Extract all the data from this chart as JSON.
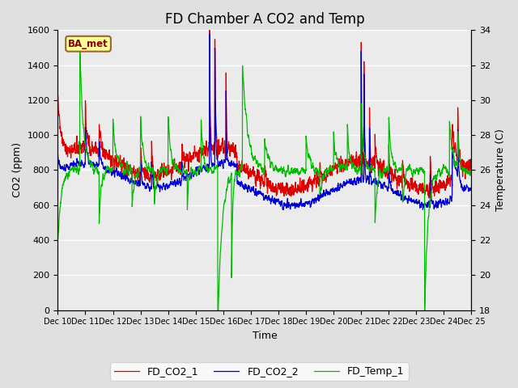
{
  "title": "FD Chamber A CO2 and Temp",
  "xlabel": "Time",
  "ylabel_left": "CO2 (ppm)",
  "ylabel_right": "Temperature (C)",
  "x_start": 10,
  "x_end": 25,
  "x_ticks": [
    10,
    11,
    12,
    13,
    14,
    15,
    16,
    17,
    18,
    19,
    20,
    21,
    22,
    23,
    24,
    25
  ],
  "x_tick_labels": [
    "Dec 10",
    "Dec 11",
    "Dec 12",
    "Dec 13",
    "Dec 14",
    "Dec 15",
    "Dec 16",
    "Dec 17",
    "Dec 18",
    "Dec 19",
    "Dec 20",
    "Dec 21",
    "Dec 22",
    "Dec 23",
    "Dec 24",
    "Dec 25"
  ],
  "ylim_left": [
    0,
    1600
  ],
  "ylim_right": [
    18,
    34
  ],
  "yticks_left": [
    0,
    200,
    400,
    600,
    800,
    1000,
    1200,
    1400,
    1600
  ],
  "yticks_right": [
    18,
    20,
    22,
    24,
    26,
    28,
    30,
    32,
    34
  ],
  "color_co2_1": "#dd0000",
  "color_co2_2": "#0000cc",
  "color_temp": "#00bb00",
  "legend_labels": [
    "FD_CO2_1",
    "FD_CO2_2",
    "FD_Temp_1"
  ],
  "watermark_text": "BA_met",
  "background_color": "#e0e0e0",
  "plot_bg_color": "#ebebeb",
  "grid_color": "#ffffff",
  "title_fontsize": 12,
  "axis_fontsize": 9,
  "tick_fontsize": 8,
  "linewidth": 0.9
}
